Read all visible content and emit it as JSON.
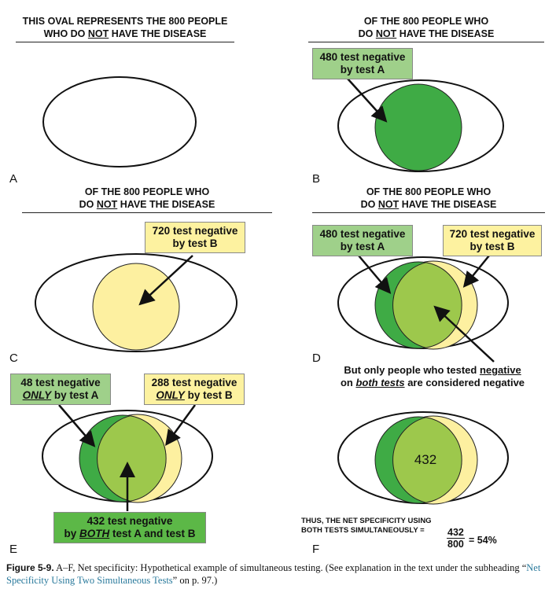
{
  "colors": {
    "dark_green": "#3fab45",
    "light_green": "#9dc84c",
    "yellow": "#fdf0a0",
    "box_green": "#9fd08a",
    "box_yellow": "#fdf2a0",
    "box_dark_green": "#5cb847",
    "caption_link": "#2a7a9c"
  },
  "panels": {
    "A": {
      "letter": "A",
      "title_line1": "THIS OVAL REPRESENTS THE 800 PEOPLE",
      "title_line2_pre": "WHO DO ",
      "title_line2_u": "NOT",
      "title_line2_post": " HAVE THE DISEASE"
    },
    "B": {
      "letter": "B",
      "title_line1": "OF THE 800 PEOPLE WHO",
      "title_line2_pre": "DO ",
      "title_line2_u": "NOT",
      "title_line2_post": " HAVE THE DISEASE",
      "box_line1": "480 test negative",
      "box_line2": "by test A"
    },
    "C": {
      "letter": "C",
      "title_line1": "OF THE 800 PEOPLE WHO",
      "title_line2_pre": "DO ",
      "title_line2_u": "NOT",
      "title_line2_post": " HAVE THE DISEASE",
      "box_line1": "720 test negative",
      "box_line2": "by test B"
    },
    "D": {
      "letter": "D",
      "title_line1": "OF THE 800 PEOPLE WHO",
      "title_line2_pre": "DO ",
      "title_line2_u": "NOT",
      "title_line2_post": " HAVE THE DISEASE",
      "box_a_line1": "480 test negative",
      "box_a_line2": "by test A",
      "box_b_line1": "720 test negative",
      "box_b_line2": "by test B",
      "note_line1_pre": "But only people who tested ",
      "note_line1_u": "negative",
      "note_line2_pre": "on ",
      "note_line2_u": "both tests",
      "note_line2_post": " are considered negative"
    },
    "E": {
      "letter": "E",
      "box_a_line1": "48 test negative",
      "box_a_line2_u": "ONLY",
      "box_a_line2_post": " by test A",
      "box_b_line1": "288 test negative",
      "box_b_line2_u": "ONLY",
      "box_b_line2_post": " by test B",
      "box_c_line1": "432 test negative",
      "box_c_line2_pre": "by ",
      "box_c_line2_u": "BOTH",
      "box_c_line2_post": " test A and test B"
    },
    "F": {
      "letter": "F",
      "center_value": "432",
      "note_line1": "THUS, THE NET SPECIFICITY USING",
      "note_line2": "BOTH TESTS SIMULTANEOUSLY =",
      "frac_num": "432",
      "frac_den": "800",
      "result": "= 54%"
    }
  },
  "caption": {
    "figure": "Figure 5-9.",
    "text1": " A–F, Net specificity: Hypothetical example of simultaneous testing. (See explanation in the text under the subheading “",
    "link": "Net Specificity Using Two Simultaneous Tests",
    "text2": "” on p. 97.)"
  }
}
